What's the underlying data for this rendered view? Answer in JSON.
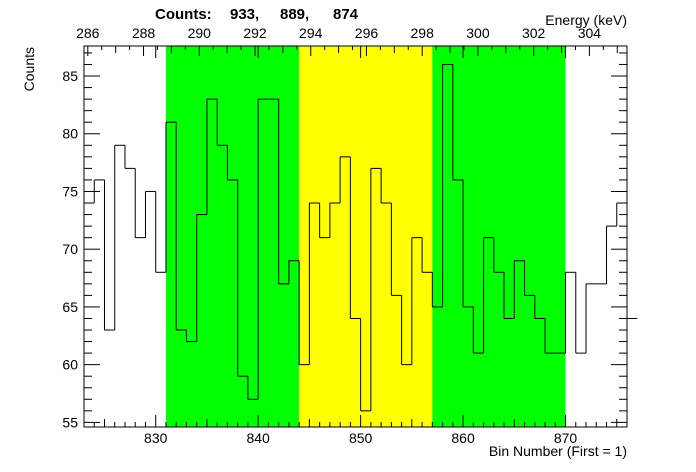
{
  "chart_data": {
    "type": "histogram",
    "title": "",
    "counts_label": "Counts:",
    "counts": [
      "933,",
      "889,",
      "874"
    ],
    "xlabel": "Bin Number (First = 1)",
    "ylabel": "Counts",
    "top_axis_label": "Energy (keV)",
    "xlim": [
      823,
      876
    ],
    "ylim": [
      54.6,
      87.6
    ],
    "x_ticks": [
      830,
      840,
      850,
      860,
      870
    ],
    "x_tick_labels": [
      "830",
      "840",
      "850",
      "860",
      "870"
    ],
    "y_ticks": [
      55,
      60,
      65,
      70,
      75,
      80,
      85
    ],
    "y_tick_labels": [
      "55",
      "60",
      "65",
      "70",
      "75",
      "80",
      "85"
    ],
    "energy_ticks": [
      286,
      288,
      290,
      292,
      294,
      296,
      298,
      300,
      302,
      304
    ],
    "energy_tick_labels": [
      "286",
      "288",
      "290",
      "292",
      "294",
      "296",
      "298",
      "300",
      "302",
      "304"
    ],
    "energy_calibration": {
      "bin_at_286": 823.37,
      "bins_per_keV": 2.72
    },
    "regions": [
      {
        "name": "left-background",
        "from": 831,
        "to": 844,
        "color": "#00ff00"
      },
      {
        "name": "peak",
        "from": 844,
        "to": 857,
        "color": "#ffff00"
      },
      {
        "name": "right-background",
        "from": 857,
        "to": 870,
        "color": "#00ff00"
      }
    ],
    "bin_start": 823,
    "values": [
      74,
      76,
      63,
      79,
      77,
      71,
      75,
      68,
      81,
      63,
      62,
      73,
      83,
      79,
      76,
      59,
      57,
      83,
      83,
      67,
      69,
      60,
      74,
      71,
      74,
      78,
      64,
      56,
      77,
      74,
      66,
      60,
      71,
      68,
      65,
      86,
      76,
      65,
      61,
      71,
      68,
      64,
      69,
      66,
      64,
      61,
      61,
      68,
      61,
      67,
      67,
      72,
      74,
      64
    ]
  }
}
